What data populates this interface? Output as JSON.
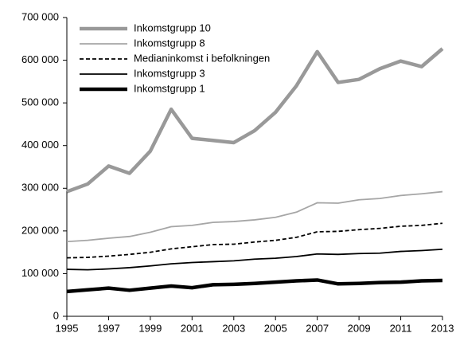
{
  "chart_data": {
    "type": "line",
    "x": [
      1995,
      1996,
      1997,
      1998,
      1999,
      2000,
      2001,
      2002,
      2003,
      2004,
      2005,
      2006,
      2007,
      2008,
      2009,
      2010,
      2011,
      2012,
      2013
    ],
    "series": [
      {
        "name": "Inkomstgrupp 10",
        "color": "#999999",
        "width": 4.5,
        "dash": false,
        "values": [
          292000,
          310000,
          352000,
          335000,
          387000,
          485000,
          417000,
          412000,
          407000,
          435000,
          478000,
          540000,
          620000,
          548000,
          555000,
          580000,
          598000,
          585000,
          627000
        ]
      },
      {
        "name": "Inkomstgrupp 8",
        "color": "#a6a6a6",
        "width": 1.8,
        "dash": false,
        "values": [
          175000,
          178000,
          183000,
          187000,
          197000,
          210000,
          213000,
          220000,
          222000,
          226000,
          232000,
          244000,
          266000,
          265000,
          273000,
          276000,
          283000,
          287000,
          292000
        ]
      },
      {
        "name": "Medianinkomst i befolkningen",
        "color": "#000000",
        "width": 1.8,
        "dash": true,
        "values": [
          137000,
          138000,
          141000,
          145000,
          150000,
          158000,
          163000,
          168000,
          169000,
          174000,
          178000,
          185000,
          198000,
          199000,
          203000,
          206000,
          211000,
          213000,
          218000
        ]
      },
      {
        "name": "Inkomstgrupp 3",
        "color": "#000000",
        "width": 1.8,
        "dash": false,
        "values": [
          110000,
          109000,
          111000,
          114000,
          118000,
          123000,
          126000,
          128000,
          130000,
          134000,
          136000,
          140000,
          146000,
          145000,
          147000,
          148000,
          152000,
          154000,
          157000
        ]
      },
      {
        "name": "Inkomstgrupp 1",
        "color": "#000000",
        "width": 4.5,
        "dash": false,
        "values": [
          58000,
          62000,
          66000,
          61000,
          66000,
          71000,
          67000,
          74000,
          75000,
          77000,
          80000,
          83000,
          85000,
          76000,
          77000,
          79000,
          80000,
          83000,
          84000
        ]
      }
    ],
    "xlim": [
      1995,
      2013
    ],
    "xticks": [
      1995,
      1997,
      1999,
      2001,
      2003,
      2005,
      2007,
      2009,
      2011,
      2013
    ],
    "ylim": [
      0,
      700000
    ],
    "yticks": [
      0,
      {
        "value": 100000,
        "label": "100 000"
      },
      {
        "value": 200000,
        "label": "200 000"
      },
      {
        "value": 300000,
        "label": "300 000"
      },
      {
        "value": 400000,
        "label": "400 000"
      },
      {
        "value": 500000,
        "label": "500 000"
      },
      {
        "value": 600000,
        "label": "600 000"
      },
      {
        "value": 700000,
        "label": "700 000"
      }
    ],
    "legend": "upper left"
  }
}
